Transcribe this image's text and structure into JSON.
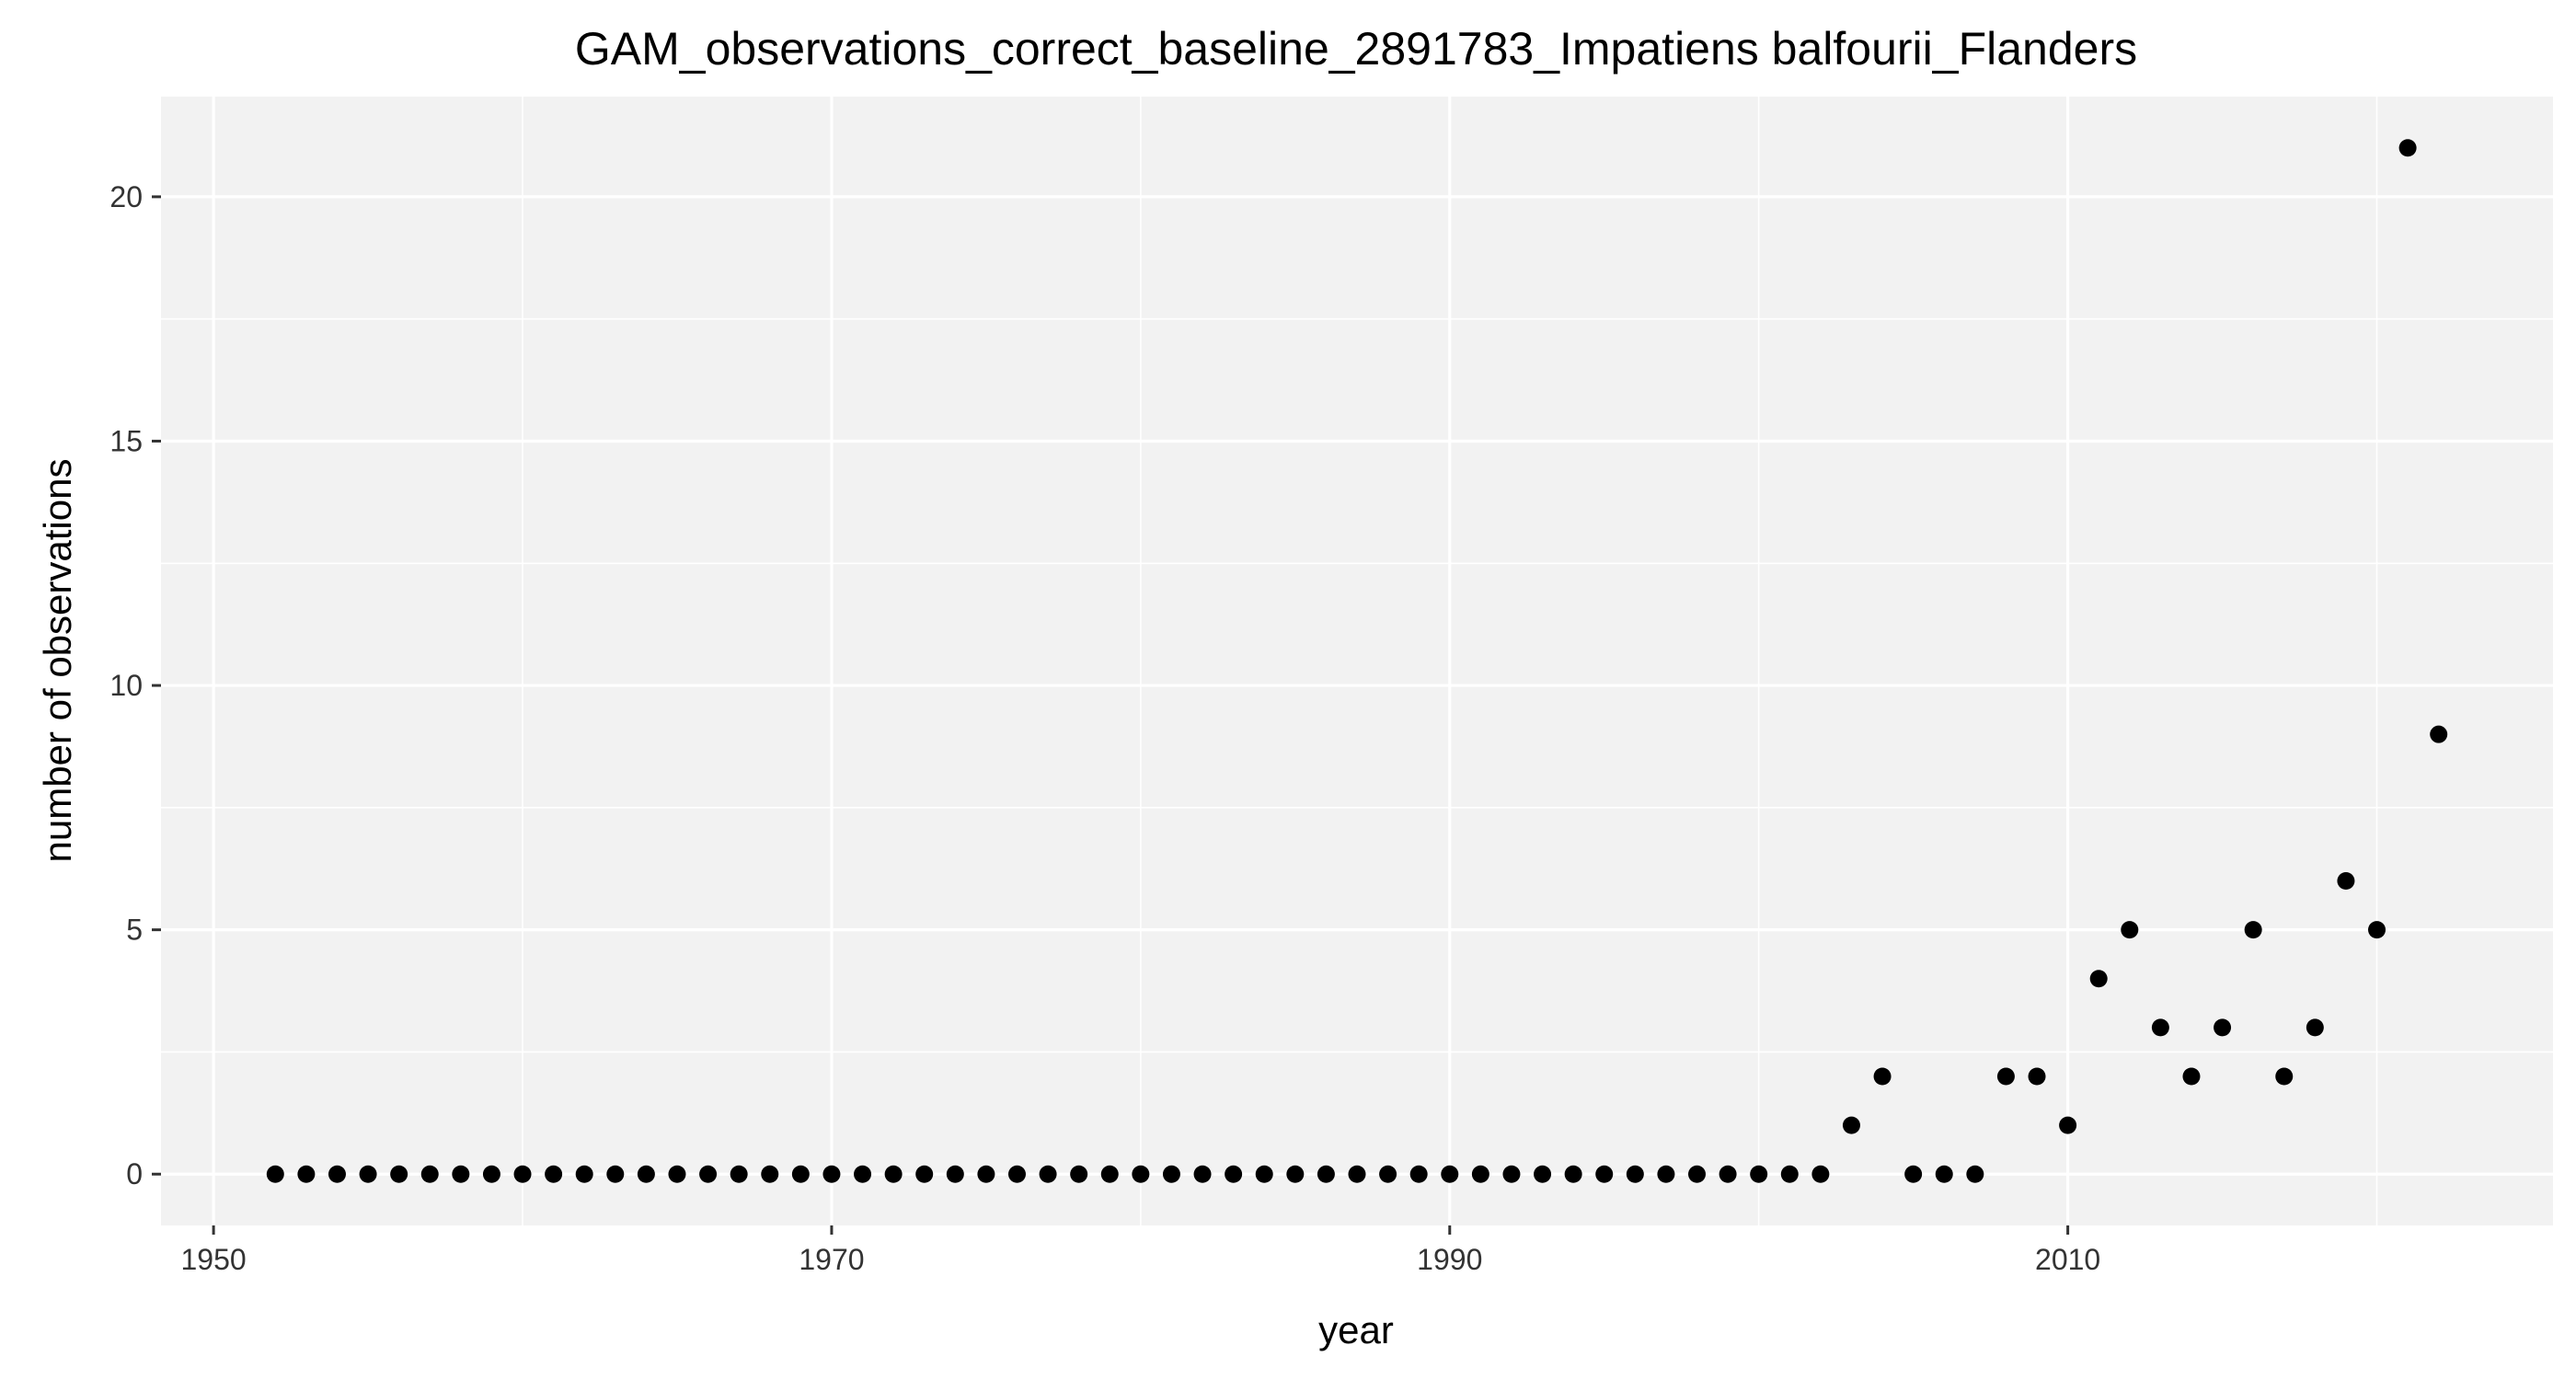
{
  "chart_data": {
    "type": "scatter",
    "title": "GAM_observations_correct_baseline_2891783_Impatiens balfourii_Flanders",
    "xlabel": "year",
    "ylabel": "number of observations",
    "xlim": [
      1948.3,
      2025.7
    ],
    "ylim": [
      -1.05,
      22.05
    ],
    "x_ticks": [
      1950,
      1970,
      1990,
      2010
    ],
    "y_ticks": [
      0,
      5,
      10,
      15,
      20
    ],
    "x_tick_labels": [
      "1950",
      "1970",
      "1990",
      "2010"
    ],
    "y_tick_labels": [
      "0",
      "5",
      "10",
      "15",
      "20"
    ],
    "grid": true,
    "legend": "none",
    "colors": {
      "panel": "#F2F2F2",
      "grid": "#FFFFFF",
      "point": "#000000"
    },
    "x": [
      1952,
      1953,
      1954,
      1955,
      1956,
      1957,
      1958,
      1959,
      1960,
      1961,
      1962,
      1963,
      1964,
      1965,
      1966,
      1967,
      1968,
      1969,
      1970,
      1971,
      1972,
      1973,
      1974,
      1975,
      1976,
      1977,
      1978,
      1979,
      1980,
      1981,
      1982,
      1983,
      1984,
      1985,
      1986,
      1987,
      1988,
      1989,
      1990,
      1991,
      1992,
      1993,
      1994,
      1995,
      1996,
      1997,
      1998,
      1999,
      2000,
      2001,
      2002,
      2003,
      2004,
      2005,
      2006,
      2007,
      2008,
      2009,
      2010,
      2011,
      2012,
      2013,
      2014,
      2015,
      2016,
      2017,
      2018,
      2019,
      2020,
      2021,
      2022
    ],
    "y": [
      0,
      0,
      0,
      0,
      0,
      0,
      0,
      0,
      0,
      0,
      0,
      0,
      0,
      0,
      0,
      0,
      0,
      0,
      0,
      0,
      0,
      0,
      0,
      0,
      0,
      0,
      0,
      0,
      0,
      0,
      0,
      0,
      0,
      0,
      0,
      0,
      0,
      0,
      0,
      0,
      0,
      0,
      0,
      0,
      0,
      0,
      0,
      0,
      0,
      0,
      0,
      1,
      2,
      0,
      0,
      0,
      2,
      2,
      1,
      4,
      5,
      3,
      2,
      3,
      5,
      2,
      3,
      6,
      5,
      21,
      9
    ]
  }
}
